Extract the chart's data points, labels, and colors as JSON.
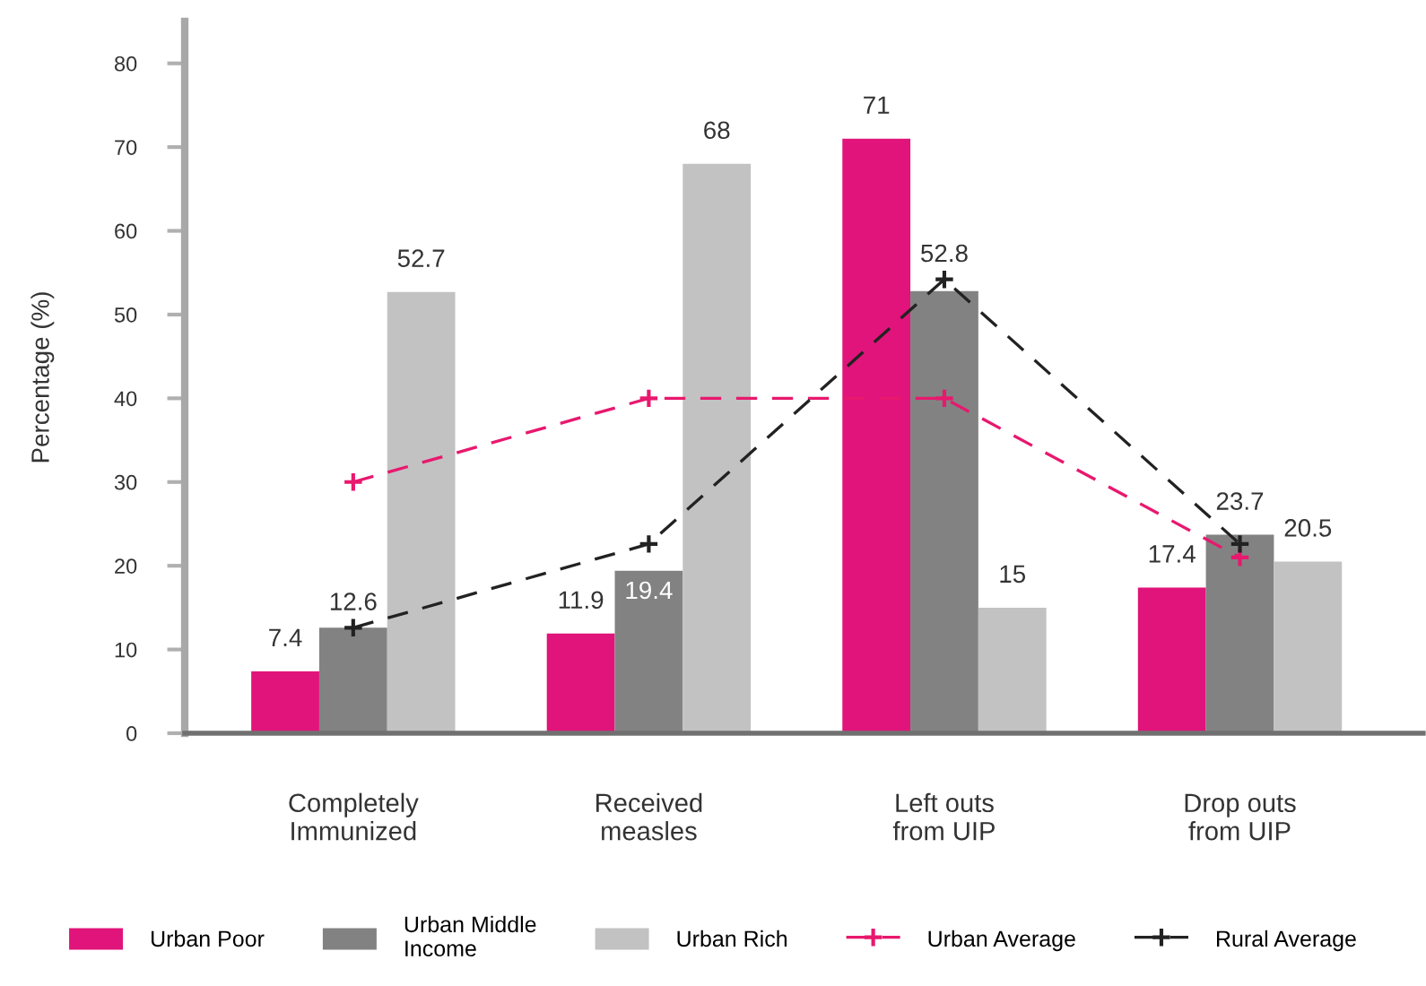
{
  "chart_data": {
    "type": "bar",
    "ylabel": "Percentage (%)",
    "categories": [
      "Completely\nImmunized",
      "Received\nmeasles",
      "Left outs\nfrom UIP",
      "Drop outs\nfrom UIP"
    ],
    "series": [
      {
        "name": "Urban Poor",
        "color": "#e0147a",
        "values": [
          7.4,
          11.9,
          71,
          17.4
        ],
        "value_labels": [
          "7.4",
          "11.9",
          "71",
          "17.4"
        ]
      },
      {
        "name": "Urban Middle\nIncome",
        "color": "#828282",
        "values": [
          12.6,
          19.4,
          52.8,
          23.7
        ],
        "value_labels": [
          "12.6",
          "19.4",
          "52.8",
          "23.7"
        ]
      },
      {
        "name": "Urban Rich",
        "color": "#c2c2c2",
        "values": [
          52.7,
          68,
          15,
          20.5
        ],
        "value_labels": [
          "52.7",
          "68",
          "15",
          "20.5"
        ]
      },
      {
        "name": "Urban Average",
        "type": "line",
        "color": "#e8186e",
        "values": [
          30,
          40,
          40,
          21
        ],
        "line_style": "dashed",
        "marker": "cross"
      },
      {
        "name": "Rural Average",
        "type": "line",
        "color": "#222222",
        "values": [
          12.6,
          22.6,
          54.2,
          22.6
        ],
        "line_style": "dashed",
        "marker": "cross"
      }
    ],
    "ylim": [
      0,
      85
    ],
    "yticks": [
      0,
      10,
      20,
      30,
      40,
      50,
      60,
      70,
      80
    ],
    "legend": "bottom"
  }
}
